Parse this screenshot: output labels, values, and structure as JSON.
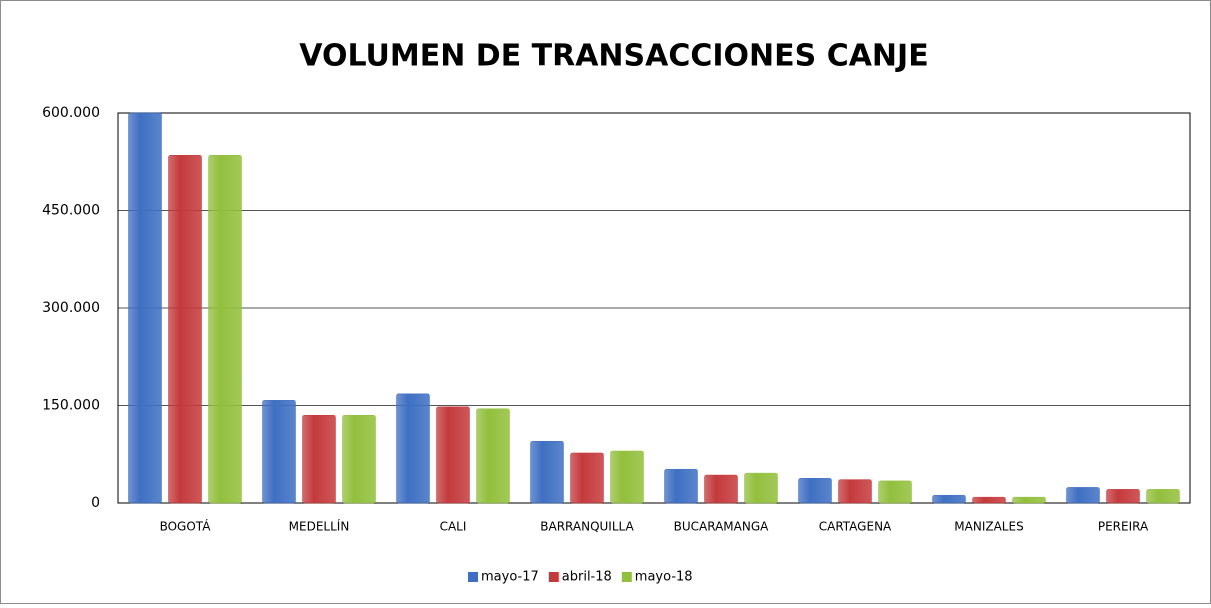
{
  "chart_data": {
    "type": "bar",
    "title": "VOLUMEN DE TRANSACCIONES CANJE",
    "categories": [
      "BOGOTÁ",
      "MEDELLÍN",
      "CALI",
      "BARRANQUILLA",
      "BUCARAMANGA",
      "CARTAGENA",
      "MANIZALES",
      "PEREIRA"
    ],
    "series": [
      {
        "name": "mayo-17",
        "color": "#3f6fc3",
        "values": [
          600000,
          158000,
          168000,
          95000,
          52000,
          38000,
          12000,
          24000
        ]
      },
      {
        "name": "abril-18",
        "color": "#c43a3c",
        "values": [
          535000,
          135000,
          148000,
          77000,
          43000,
          36000,
          9000,
          21000
        ]
      },
      {
        "name": "mayo-18",
        "color": "#92bf3c",
        "values": [
          535000,
          135000,
          145000,
          80000,
          46000,
          34000,
          9000,
          21000
        ]
      }
    ],
    "ylim": [
      0,
      600000
    ],
    "yticks": [
      0,
      {
        "value": 150000,
        "label": "150.000"
      },
      {
        "value": 300000,
        "label": "300.000"
      },
      {
        "value": 450000,
        "label": "450.000"
      },
      {
        "value": 600000,
        "label": "600.000"
      }
    ],
    "grid": true,
    "legend": "bottom"
  }
}
